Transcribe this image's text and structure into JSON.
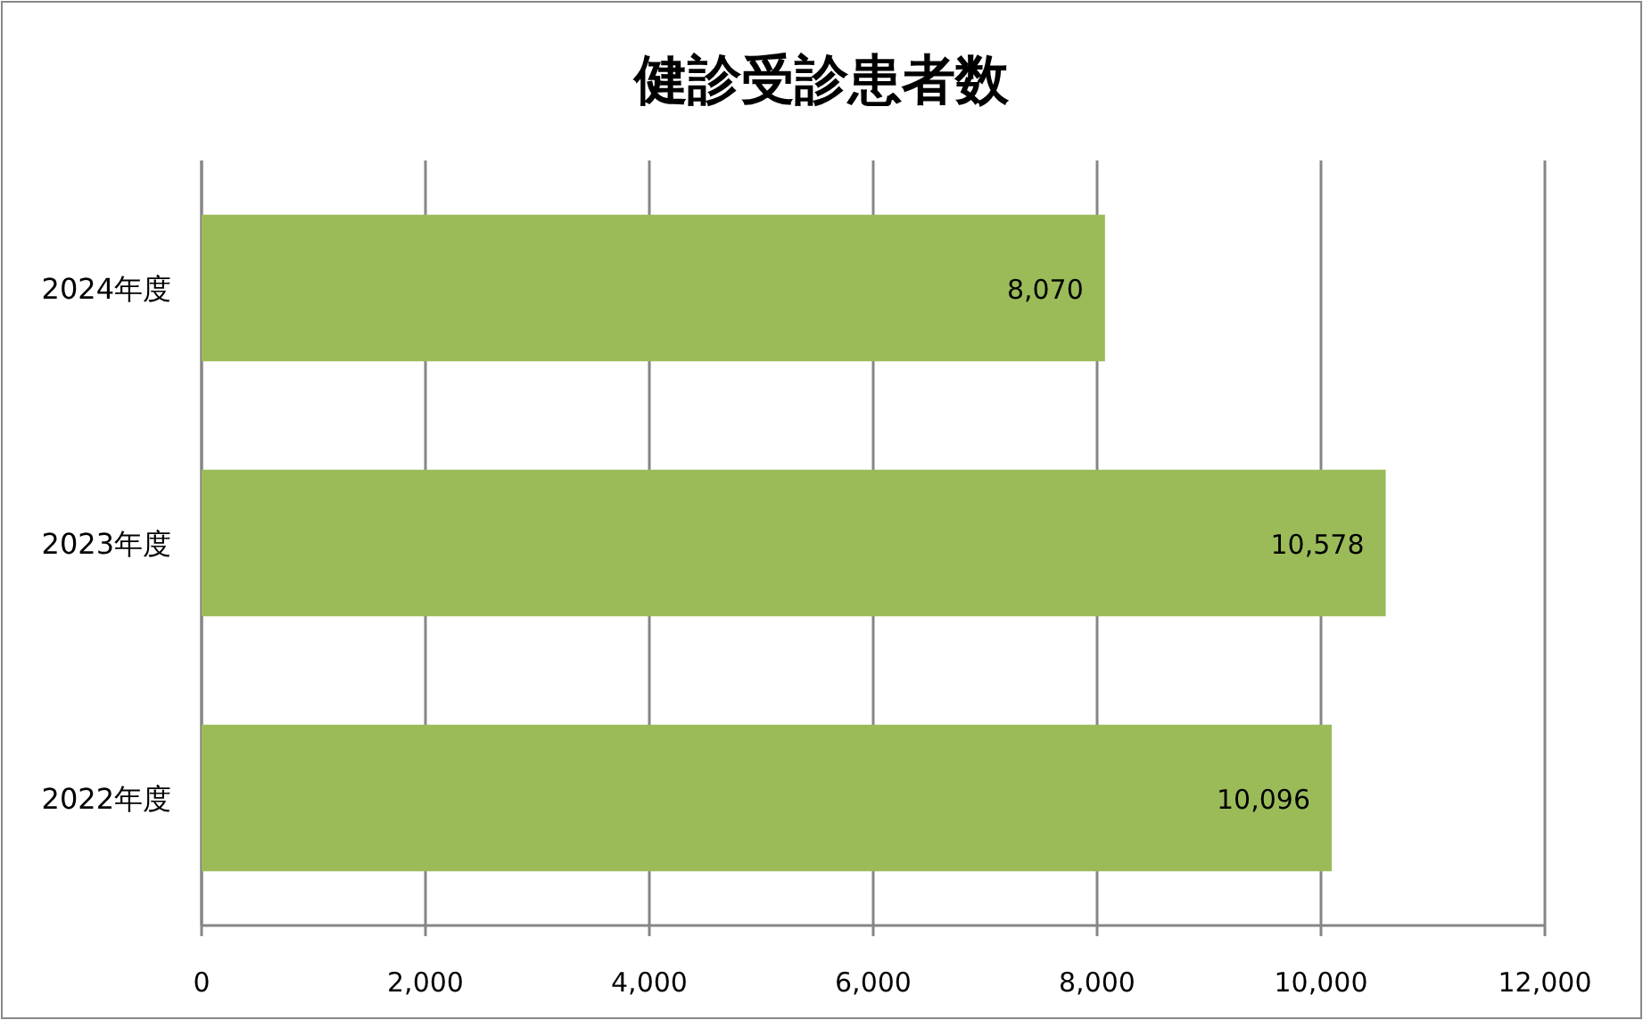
{
  "chart_data": {
    "type": "bar",
    "orientation": "horizontal",
    "title": "健診受診患者数",
    "categories": [
      "2024年度",
      "2023年度",
      "2022年度"
    ],
    "values": [
      8070,
      10578,
      10096
    ],
    "value_labels": [
      "8,070",
      "10,578",
      "10,096"
    ],
    "color": "#9bbb59",
    "xlim": [
      0,
      12000
    ],
    "xticks": [
      0,
      {
        "value": 2000,
        "label": "2,000"
      },
      {
        "value": 4000,
        "label": "4,000"
      },
      {
        "value": 6000,
        "label": "6,000"
      },
      {
        "value": 8000,
        "label": "8,000"
      },
      {
        "value": 10000,
        "label": "10,000"
      },
      {
        "value": 12000,
        "label": "12,000"
      }
    ],
    "grid": "x"
  }
}
